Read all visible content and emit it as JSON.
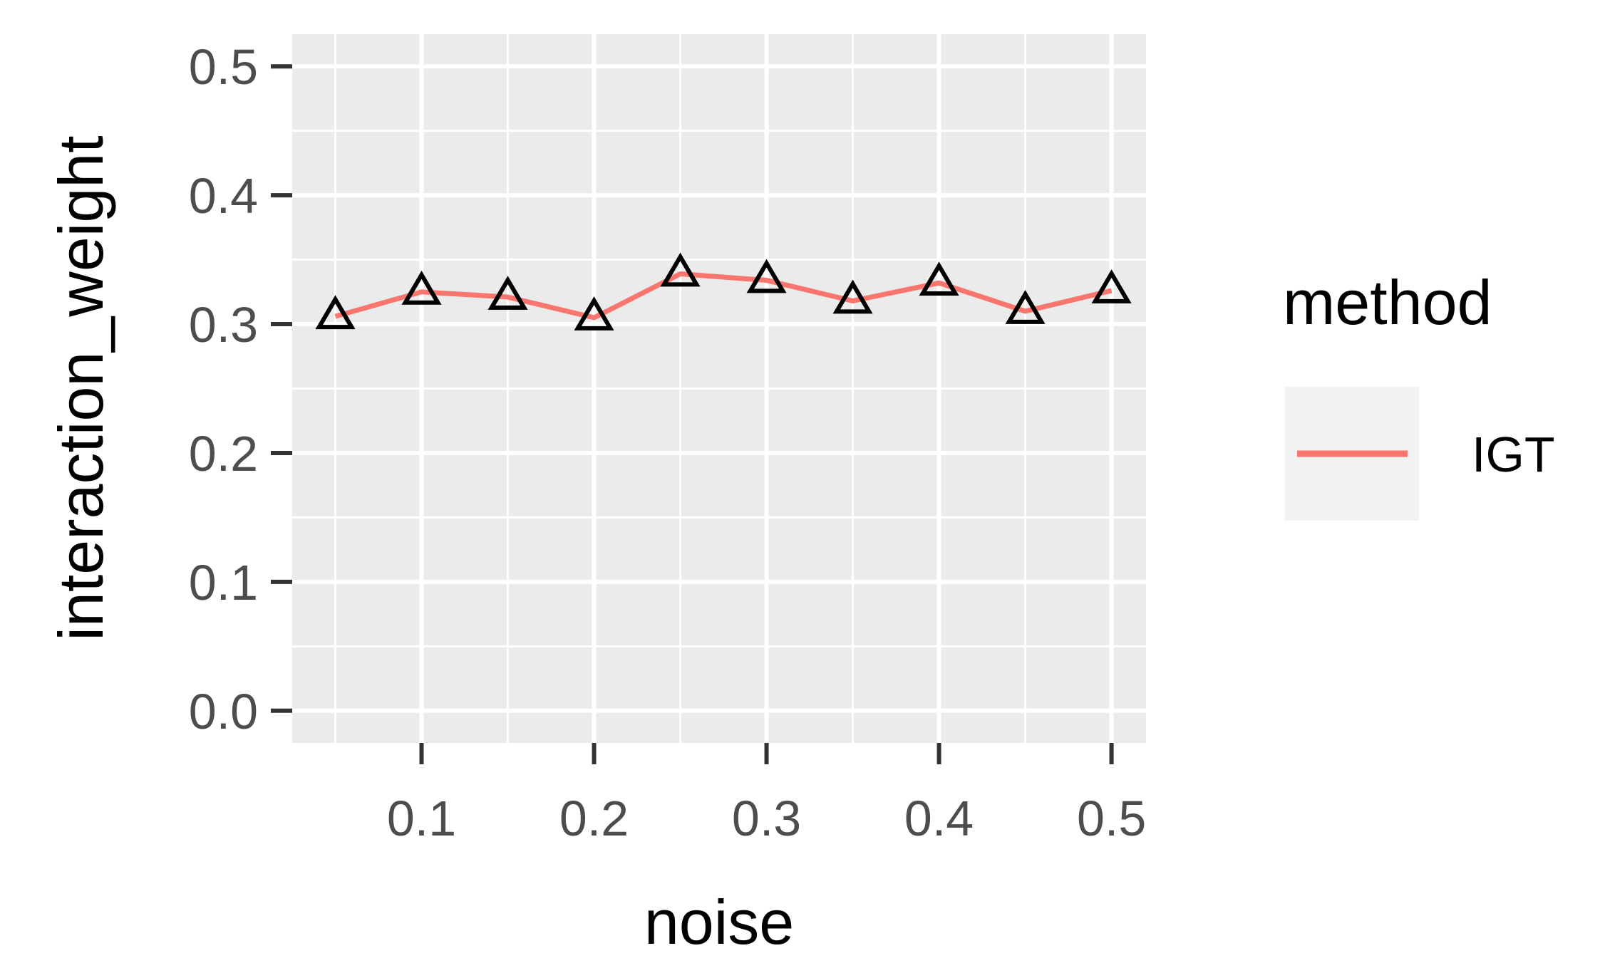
{
  "chart_data": {
    "type": "line",
    "xlabel": "noise",
    "ylabel": "interaction_weight",
    "xlim": [
      0.025,
      0.52
    ],
    "ylim": [
      -0.025,
      0.525
    ],
    "x_ticks": [
      0.1,
      0.2,
      0.3,
      0.4,
      0.5
    ],
    "x_tick_labels": [
      "0.1",
      "0.2",
      "0.3",
      "0.4",
      "0.5"
    ],
    "y_ticks": [
      0.0,
      0.1,
      0.2,
      0.3,
      0.4,
      0.5
    ],
    "y_tick_labels": [
      "0.0",
      "0.1",
      "0.2",
      "0.3",
      "0.4",
      "0.5"
    ],
    "grid": true,
    "legend": {
      "title": "method",
      "position": "right"
    },
    "series": [
      {
        "name": "IGT",
        "color": "#f8766d",
        "marker": "open-triangle",
        "x": [
          0.05,
          0.1,
          0.15,
          0.2,
          0.25,
          0.3,
          0.35,
          0.4,
          0.45,
          0.5
        ],
        "y": [
          0.306,
          0.325,
          0.321,
          0.305,
          0.339,
          0.334,
          0.318,
          0.332,
          0.31,
          0.326
        ]
      }
    ]
  }
}
